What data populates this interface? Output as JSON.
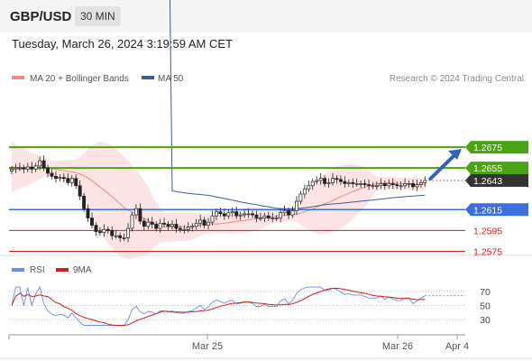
{
  "header": {
    "symbol": "GBP/USD",
    "timeframe": "30 MIN"
  },
  "datetime": "Tuesday, March 26, 2024 3:19:59 AM CET",
  "legend": {
    "ma20_bb": "MA 20 + Bollinger Bands",
    "ma50": "MA 50",
    "credit": "Research © 2024 Trading Central"
  },
  "rsi_legend": {
    "rsi": "RSI",
    "ma9": "9MA"
  },
  "colors": {
    "green": "#4aa312",
    "blue": "#3a70db",
    "red": "#d21e1e",
    "dark": "#333333",
    "bb_fill": "#fde4e4",
    "ma20": "#f08a8a",
    "ma50": "#3f5b9a",
    "rsi": "#6f8fd8",
    "rsi_ma": "#d21e1e"
  },
  "chart_data": {
    "type": "line",
    "y_range": [
      1.2565,
      1.2695
    ],
    "levels": [
      {
        "label": "1.2675",
        "value": 1.2675,
        "style": "green"
      },
      {
        "label": "1.2655",
        "value": 1.2655,
        "style": "green"
      },
      {
        "label": "1.2643",
        "value": 1.2643,
        "style": "dark"
      },
      {
        "label": "1.2615",
        "value": 1.2615,
        "style": "blue"
      },
      {
        "label": "1.2595",
        "value": 1.2595,
        "style": "red"
      },
      {
        "label": "1.2575",
        "value": 1.2575,
        "style": "red"
      }
    ],
    "x_ticks": [
      "Mar 25",
      "Mar 26",
      "Apr 4"
    ],
    "candle_closes": [
      1.2654,
      1.2655,
      1.2655,
      1.2654,
      1.2656,
      1.2654,
      1.2657,
      1.2662,
      1.2655,
      1.265,
      1.2647,
      1.2645,
      1.2646,
      1.2645,
      1.2641,
      1.2645,
      1.2638,
      1.2628,
      1.2616,
      1.2607,
      1.26,
      1.2594,
      1.2593,
      1.2596,
      1.2595,
      1.259,
      1.259,
      1.2588,
      1.2588,
      1.2597,
      1.261,
      1.2616,
      1.2604,
      1.2599,
      1.2603,
      1.2601,
      1.2597,
      1.2602,
      1.2601,
      1.2599,
      1.2601,
      1.2597,
      1.2596,
      1.2596,
      1.2598,
      1.2599,
      1.2602,
      1.2605,
      1.26,
      1.2603,
      1.2609,
      1.2613,
      1.2611,
      1.2609,
      1.2612,
      1.2613,
      1.2609,
      1.261,
      1.2611,
      1.2611,
      1.261,
      1.2607,
      1.2607,
      1.2609,
      1.2607,
      1.2607,
      1.2607,
      1.2612,
      1.2614,
      1.261,
      1.2614,
      1.2623,
      1.263,
      1.2635,
      1.2638,
      1.2642,
      1.2643,
      1.2645,
      1.264,
      1.2641,
      1.2645,
      1.2644,
      1.2642,
      1.264,
      1.2641,
      1.264,
      1.264,
      1.264,
      1.2639,
      1.2638,
      1.2638,
      1.2638,
      1.264,
      1.2638,
      1.264,
      1.2639,
      1.2638,
      1.2638,
      1.264,
      1.264,
      1.2637,
      1.2639,
      1.2641,
      1.2643
    ],
    "ma20": {
      "start": 1.2656,
      "end": 1.264
    },
    "ma50": {
      "start": 1.268,
      "end": 1.2628
    },
    "projection": {
      "from": 1.2643,
      "to": 1.2675
    },
    "rsi": {
      "y_range": [
        15,
        80
      ],
      "ticks": [
        70,
        50,
        30
      ]
    }
  }
}
